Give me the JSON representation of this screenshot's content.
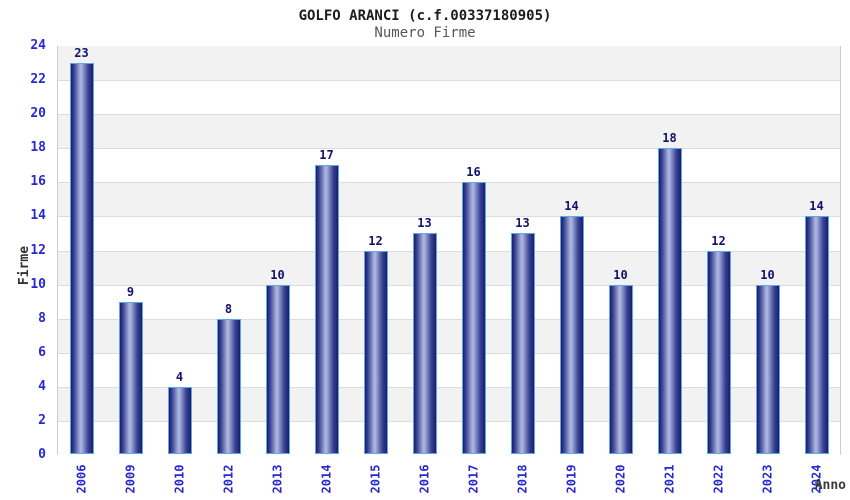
{
  "header": {
    "title": "GOLFO ARANCI (c.f.00337180905)",
    "subtitle": "Numero Firme"
  },
  "chart_data": {
    "type": "bar",
    "title": "GOLFO ARANCI (c.f.00337180905)",
    "subtitle": "Numero Firme",
    "xlabel": "Anno",
    "ylabel": "Firme",
    "categories": [
      "2006",
      "2009",
      "2010",
      "2012",
      "2013",
      "2014",
      "2015",
      "2016",
      "2017",
      "2018",
      "2019",
      "2020",
      "2021",
      "2022",
      "2023",
      "2024"
    ],
    "values": [
      23,
      9,
      4,
      8,
      10,
      17,
      12,
      13,
      16,
      13,
      14,
      10,
      18,
      12,
      10,
      14
    ],
    "ylim": [
      0,
      24
    ],
    "ytick_step": 2,
    "yticks": [
      0,
      2,
      4,
      6,
      8,
      10,
      12,
      14,
      16,
      18,
      20,
      22,
      24
    ],
    "grid": "horizontal alternating bands, gray band starts at top (22-24)",
    "legend_position": "none",
    "bar_labels_shown": true
  },
  "colors": {
    "tick_label_blue": "#2828cf",
    "value_label_navy": "#12126e",
    "bar_edge_dark": "#181d6b",
    "bar_mid": "#3a4494",
    "bar_center_light": "#aab3de",
    "bar_outline_blue": "#5ea7e4",
    "band_gray": "#f2f2f2",
    "band_white": "#ffffff",
    "grid_line": "#dcdcdc",
    "plot_border": "#cccccc",
    "title_color": "#1c1c1c",
    "subtitle_color": "#565656",
    "axis_title_color": "#333333"
  }
}
